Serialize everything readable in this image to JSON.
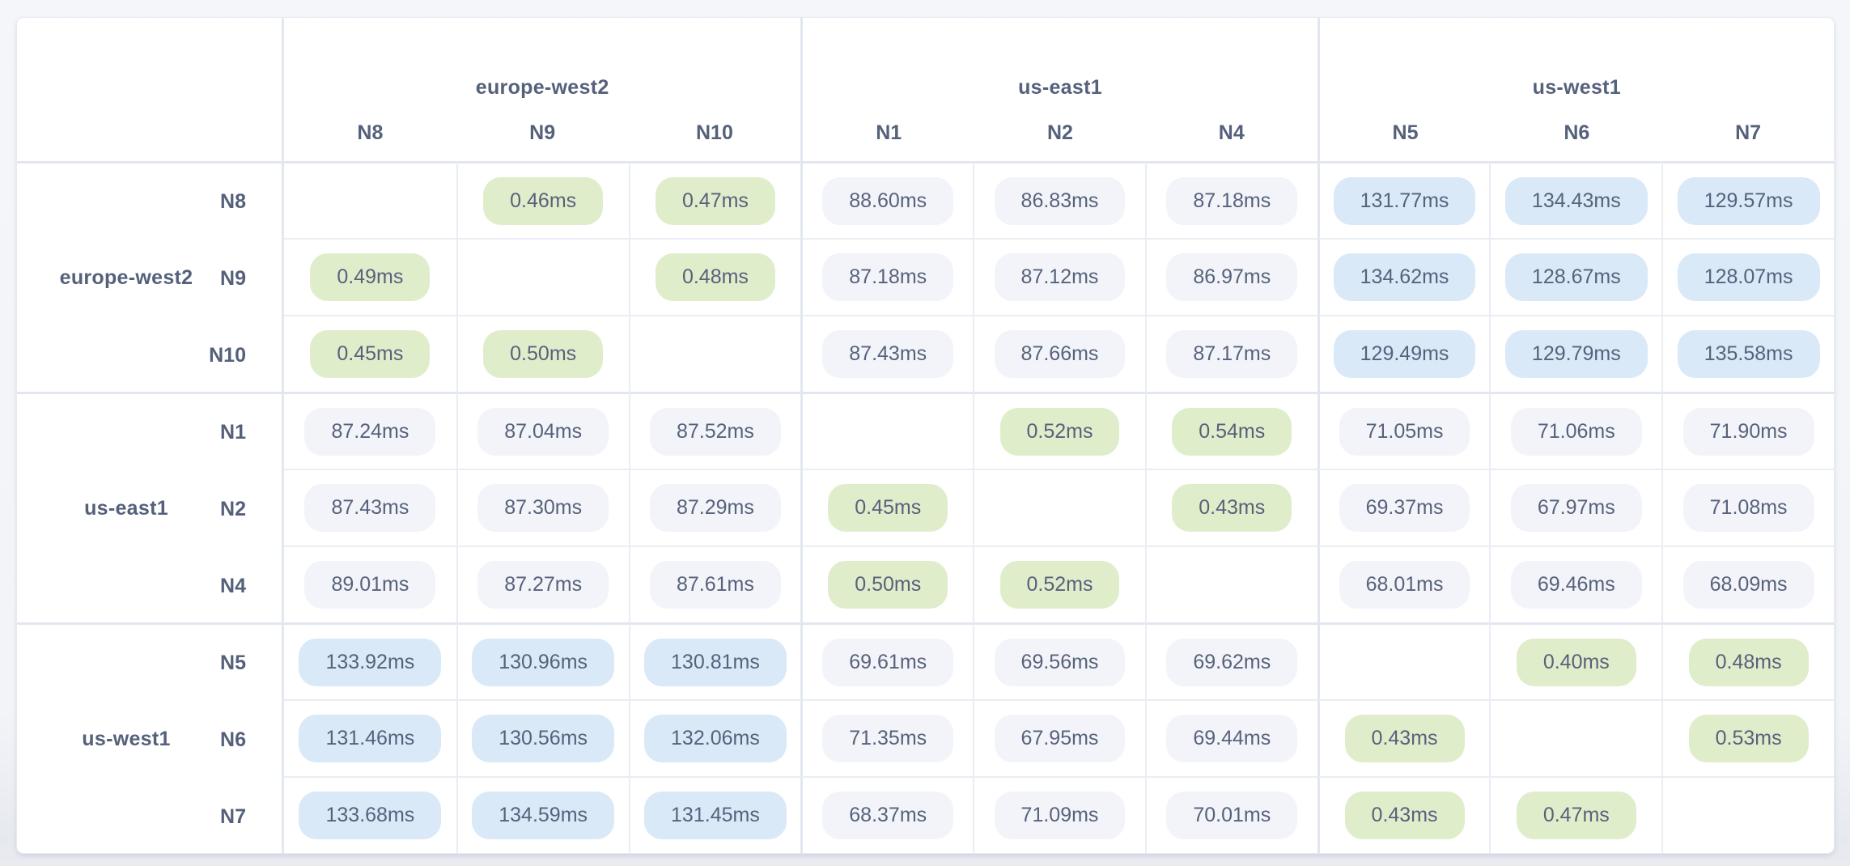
{
  "theme": {
    "page_bg": "#f4f6fa",
    "card_bg": "#ffffff",
    "label_text": "#55617b",
    "value_text": "#57627b",
    "pill_low_bg": "#e0edcb",
    "pill_mid_bg": "#f2f4f9",
    "pill_high_bg": "#d9e9f8",
    "border_inner": "#eaedf4",
    "border_group": "#e2e7ef"
  },
  "matrix": {
    "unit": "ms",
    "col_groups": [
      {
        "region": "europe-west2",
        "nodes": [
          "N8",
          "N9",
          "N10"
        ]
      },
      {
        "region": "us-east1",
        "nodes": [
          "N1",
          "N2",
          "N4"
        ]
      },
      {
        "region": "us-west1",
        "nodes": [
          "N5",
          "N6",
          "N7"
        ]
      }
    ],
    "row_groups": [
      {
        "region": "europe-west2",
        "nodes": [
          "N8",
          "N9",
          "N10"
        ]
      },
      {
        "region": "us-east1",
        "nodes": [
          "N1",
          "N2",
          "N4"
        ]
      },
      {
        "region": "us-west1",
        "nodes": [
          "N5",
          "N6",
          "N7"
        ]
      }
    ],
    "rows": [
      "N8",
      "N9",
      "N10",
      "N1",
      "N2",
      "N4",
      "N5",
      "N6",
      "N7"
    ],
    "cols": [
      "N8",
      "N9",
      "N10",
      "N1",
      "N2",
      "N4",
      "N5",
      "N6",
      "N7"
    ],
    "cells": [
      [
        null,
        {
          "v": "0.46ms",
          "tier": "low"
        },
        {
          "v": "0.47ms",
          "tier": "low"
        },
        {
          "v": "88.60ms",
          "tier": "mid"
        },
        {
          "v": "86.83ms",
          "tier": "mid"
        },
        {
          "v": "87.18ms",
          "tier": "mid"
        },
        {
          "v": "131.77ms",
          "tier": "high"
        },
        {
          "v": "134.43ms",
          "tier": "high"
        },
        {
          "v": "129.57ms",
          "tier": "high"
        }
      ],
      [
        {
          "v": "0.49ms",
          "tier": "low"
        },
        null,
        {
          "v": "0.48ms",
          "tier": "low"
        },
        {
          "v": "87.18ms",
          "tier": "mid"
        },
        {
          "v": "87.12ms",
          "tier": "mid"
        },
        {
          "v": "86.97ms",
          "tier": "mid"
        },
        {
          "v": "134.62ms",
          "tier": "high"
        },
        {
          "v": "128.67ms",
          "tier": "high"
        },
        {
          "v": "128.07ms",
          "tier": "high"
        }
      ],
      [
        {
          "v": "0.45ms",
          "tier": "low"
        },
        {
          "v": "0.50ms",
          "tier": "low"
        },
        null,
        {
          "v": "87.43ms",
          "tier": "mid"
        },
        {
          "v": "87.66ms",
          "tier": "mid"
        },
        {
          "v": "87.17ms",
          "tier": "mid"
        },
        {
          "v": "129.49ms",
          "tier": "high"
        },
        {
          "v": "129.79ms",
          "tier": "high"
        },
        {
          "v": "135.58ms",
          "tier": "high"
        }
      ],
      [
        {
          "v": "87.24ms",
          "tier": "mid"
        },
        {
          "v": "87.04ms",
          "tier": "mid"
        },
        {
          "v": "87.52ms",
          "tier": "mid"
        },
        null,
        {
          "v": "0.52ms",
          "tier": "low"
        },
        {
          "v": "0.54ms",
          "tier": "low"
        },
        {
          "v": "71.05ms",
          "tier": "mid"
        },
        {
          "v": "71.06ms",
          "tier": "mid"
        },
        {
          "v": "71.90ms",
          "tier": "mid"
        }
      ],
      [
        {
          "v": "87.43ms",
          "tier": "mid"
        },
        {
          "v": "87.30ms",
          "tier": "mid"
        },
        {
          "v": "87.29ms",
          "tier": "mid"
        },
        {
          "v": "0.45ms",
          "tier": "low"
        },
        null,
        {
          "v": "0.43ms",
          "tier": "low"
        },
        {
          "v": "69.37ms",
          "tier": "mid"
        },
        {
          "v": "67.97ms",
          "tier": "mid"
        },
        {
          "v": "71.08ms",
          "tier": "mid"
        }
      ],
      [
        {
          "v": "89.01ms",
          "tier": "mid"
        },
        {
          "v": "87.27ms",
          "tier": "mid"
        },
        {
          "v": "87.61ms",
          "tier": "mid"
        },
        {
          "v": "0.50ms",
          "tier": "low"
        },
        {
          "v": "0.52ms",
          "tier": "low"
        },
        null,
        {
          "v": "68.01ms",
          "tier": "mid"
        },
        {
          "v": "69.46ms",
          "tier": "mid"
        },
        {
          "v": "68.09ms",
          "tier": "mid"
        }
      ],
      [
        {
          "v": "133.92ms",
          "tier": "high"
        },
        {
          "v": "130.96ms",
          "tier": "high"
        },
        {
          "v": "130.81ms",
          "tier": "high"
        },
        {
          "v": "69.61ms",
          "tier": "mid"
        },
        {
          "v": "69.56ms",
          "tier": "mid"
        },
        {
          "v": "69.62ms",
          "tier": "mid"
        },
        null,
        {
          "v": "0.40ms",
          "tier": "low"
        },
        {
          "v": "0.48ms",
          "tier": "low"
        }
      ],
      [
        {
          "v": "131.46ms",
          "tier": "high"
        },
        {
          "v": "130.56ms",
          "tier": "high"
        },
        {
          "v": "132.06ms",
          "tier": "high"
        },
        {
          "v": "71.35ms",
          "tier": "mid"
        },
        {
          "v": "67.95ms",
          "tier": "mid"
        },
        {
          "v": "69.44ms",
          "tier": "mid"
        },
        {
          "v": "0.43ms",
          "tier": "low"
        },
        null,
        {
          "v": "0.53ms",
          "tier": "low"
        }
      ],
      [
        {
          "v": "133.68ms",
          "tier": "high"
        },
        {
          "v": "134.59ms",
          "tier": "high"
        },
        {
          "v": "131.45ms",
          "tier": "high"
        },
        {
          "v": "68.37ms",
          "tier": "mid"
        },
        {
          "v": "71.09ms",
          "tier": "mid"
        },
        {
          "v": "70.01ms",
          "tier": "mid"
        },
        {
          "v": "0.43ms",
          "tier": "low"
        },
        {
          "v": "0.47ms",
          "tier": "low"
        },
        null
      ]
    ]
  }
}
